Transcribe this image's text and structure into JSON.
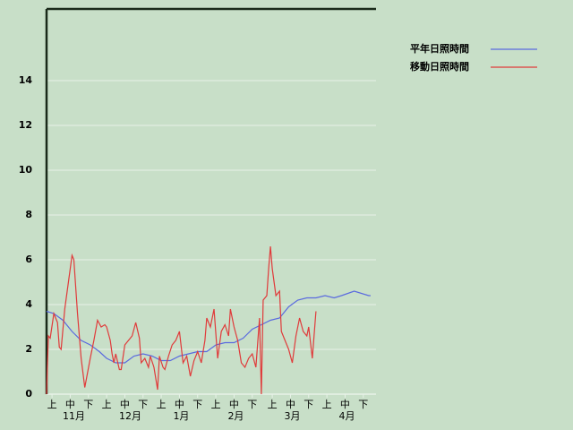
{
  "chart_data": {
    "type": "line",
    "series": [
      {
        "name": "平年日照時間",
        "color": "#5a6adf",
        "x": [
          0,
          4,
          9,
          14,
          19,
          24,
          29,
          33,
          38,
          43,
          48,
          53,
          58,
          63,
          68,
          73,
          78,
          83,
          88,
          93,
          98,
          103,
          108,
          113,
          118,
          123,
          128,
          133,
          138,
          143,
          148,
          153,
          158,
          162,
          169,
          177,
          178
        ],
        "values": [
          3.7,
          3.6,
          3.3,
          2.8,
          2.4,
          2.2,
          1.9,
          1.6,
          1.4,
          1.4,
          1.7,
          1.8,
          1.7,
          1.5,
          1.5,
          1.7,
          1.8,
          1.9,
          1.9,
          2.2,
          2.3,
          2.3,
          2.5,
          2.9,
          3.1,
          3.3,
          3.4,
          3.9,
          4.2,
          4.3,
          4.3,
          4.4,
          4.3,
          4.4,
          4.6,
          4.4,
          4.4
        ]
      },
      {
        "name": "移動日照時間",
        "color": "#e03a3a",
        "x": [
          0,
          1,
          2,
          4,
          6,
          7,
          8,
          10,
          12,
          14,
          15,
          17,
          19,
          21,
          24,
          26,
          28,
          30,
          32,
          33,
          35,
          36,
          37,
          38,
          40,
          41,
          43,
          45,
          47,
          49,
          51,
          52,
          54,
          56,
          57,
          59,
          61,
          62,
          64,
          65,
          67,
          69,
          71,
          73,
          75,
          77,
          79,
          81,
          83,
          85,
          87,
          88,
          90,
          92,
          94,
          96,
          98,
          100,
          101,
          103,
          105,
          107,
          109,
          111,
          113,
          115,
          117,
          118,
          119,
          121,
          122,
          123,
          124,
          126,
          128,
          129,
          131,
          133,
          135,
          137,
          139,
          141,
          143,
          144,
          146,
          148
        ],
        "values": [
          0,
          2.6,
          2.5,
          3.6,
          3.2,
          2.1,
          2.0,
          3.8,
          5.0,
          6.2,
          6.0,
          3.6,
          1.6,
          0.3,
          1.6,
          2.4,
          3.3,
          3.0,
          3.1,
          3.0,
          2.4,
          1.8,
          1.4,
          1.8,
          1.1,
          1.1,
          2.2,
          2.4,
          2.6,
          3.2,
          2.5,
          1.4,
          1.6,
          1.2,
          1.7,
          1.2,
          0.2,
          1.7,
          1.2,
          1.1,
          1.7,
          2.2,
          2.4,
          2.8,
          1.4,
          1.7,
          0.8,
          1.5,
          1.9,
          1.4,
          2.4,
          3.4,
          3.0,
          3.8,
          1.6,
          2.8,
          3.1,
          2.6,
          3.8,
          3.0,
          2.4,
          1.4,
          1.2,
          1.6,
          1.8,
          1.2,
          3.4,
          0,
          4.2,
          4.4,
          5.6,
          6.6,
          5.6,
          4.4,
          4.6,
          2.8,
          2.4,
          2.0,
          1.4,
          2.6,
          3.4,
          2.8,
          2.6,
          3.0,
          1.6,
          3.7
        ]
      }
    ],
    "xlim": [
      0,
      181
    ],
    "xticks": [
      {
        "value": 3,
        "label": "上"
      },
      {
        "value": 13,
        "label": "中"
      },
      {
        "value": 23,
        "label": "下"
      },
      {
        "value": 33,
        "label": "上"
      },
      {
        "value": 43,
        "label": "中"
      },
      {
        "value": 53,
        "label": "下"
      },
      {
        "value": 63,
        "label": "上"
      },
      {
        "value": 73,
        "label": "中"
      },
      {
        "value": 83,
        "label": "下"
      },
      {
        "value": 93,
        "label": "上"
      },
      {
        "value": 103,
        "label": "中"
      },
      {
        "value": 113,
        "label": "下"
      },
      {
        "value": 124,
        "label": "上"
      },
      {
        "value": 134,
        "label": "中"
      },
      {
        "value": 144,
        "label": "下"
      },
      {
        "value": 154,
        "label": "上"
      },
      {
        "value": 164,
        "label": "中"
      },
      {
        "value": 174,
        "label": "下"
      }
    ],
    "month_ticks": [
      {
        "value": 15,
        "label": "11月"
      },
      {
        "value": 46,
        "label": "12月"
      },
      {
        "value": 74,
        "label": "1月"
      },
      {
        "value": 104,
        "label": "2月"
      },
      {
        "value": 135,
        "label": "3月"
      },
      {
        "value": 165,
        "label": "4月"
      }
    ],
    "ylim": [
      0,
      17.2
    ],
    "yticks": [
      0,
      2,
      4,
      6,
      8,
      10,
      12,
      14
    ],
    "grid": true
  }
}
